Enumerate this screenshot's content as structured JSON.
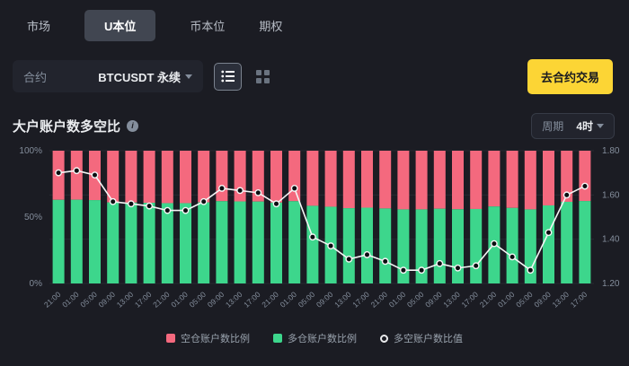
{
  "colors": {
    "background": "#1B1C23",
    "panel": "#22242D",
    "accent_yellow": "#FCD535",
    "short_red": "#F4697E",
    "long_green": "#3DD68C",
    "ratio_line": "#F5F5F5",
    "muted_text": "#848E9C"
  },
  "tabs": [
    {
      "label": "市场",
      "active": false
    },
    {
      "label": "U本位",
      "active": true
    },
    {
      "label": "币本位",
      "active": false
    },
    {
      "label": "期权",
      "active": false
    }
  ],
  "toolbar": {
    "contract_label": "合约",
    "contract_value": "BTCUSDT 永续",
    "trade_button": "去合约交易"
  },
  "section": {
    "title": "大户账户数多空比",
    "info_glyph": "i",
    "period_label": "周期",
    "period_value": "4时"
  },
  "legend": [
    {
      "label": "空仓账户数比例",
      "marker": "square",
      "color": "#F4697E"
    },
    {
      "label": "多仓账户数比例",
      "marker": "square",
      "color": "#3DD68C"
    },
    {
      "label": "多空账户数比值",
      "marker": "dot",
      "color": "#F5F5F5"
    }
  ],
  "chart_data": {
    "type": "bar",
    "subtype": "stacked-percent-bars-with-ratio-line",
    "title": "大户账户数多空比",
    "categories": [
      "21:00",
      "01:00",
      "05:00",
      "09:00",
      "13:00",
      "17:00",
      "21:00",
      "01:00",
      "05:00",
      "09:00",
      "13:00",
      "17:00",
      "21:00",
      "01:00",
      "05:00",
      "09:00",
      "13:00",
      "17:00",
      "21:00",
      "01:00",
      "05:00",
      "09:00",
      "13:00",
      "17:00",
      "21:00",
      "01:00",
      "05:00",
      "09:00",
      "13:00",
      "17:00"
    ],
    "series": [
      {
        "name": "空仓账户数比例",
        "type": "bar",
        "stack": "top",
        "color": "#F4697E",
        "values": [
          37.0,
          36.9,
          37.2,
          38.9,
          39.1,
          39.2,
          39.5,
          39.5,
          38.9,
          38.0,
          38.2,
          38.3,
          39.1,
          38.0,
          41.5,
          42.2,
          43.3,
          42.9,
          43.5,
          44.2,
          44.2,
          43.7,
          44.1,
          43.9,
          42.0,
          43.1,
          44.2,
          41.2,
          38.5,
          37.9
        ]
      },
      {
        "name": "多仓账户数比例",
        "type": "bar",
        "stack": "bottom",
        "color": "#3DD68C",
        "values": [
          63.0,
          63.1,
          62.8,
          61.1,
          60.9,
          60.8,
          60.5,
          60.5,
          61.1,
          62.0,
          61.8,
          61.7,
          60.9,
          62.0,
          58.5,
          57.8,
          56.7,
          57.1,
          56.5,
          55.8,
          55.8,
          56.3,
          55.9,
          56.1,
          58.0,
          56.9,
          55.8,
          58.8,
          61.5,
          62.1
        ]
      },
      {
        "name": "多空账户数比值",
        "type": "line",
        "color": "#F5F5F5",
        "values": [
          1.7,
          1.71,
          1.69,
          1.57,
          1.56,
          1.55,
          1.53,
          1.53,
          1.57,
          1.63,
          1.62,
          1.61,
          1.56,
          1.63,
          1.41,
          1.37,
          1.31,
          1.33,
          1.3,
          1.26,
          1.26,
          1.29,
          1.27,
          1.28,
          1.38,
          1.32,
          1.26,
          1.43,
          1.6,
          1.64
        ]
      }
    ],
    "left_axis": {
      "min": 0,
      "max": 100,
      "ticks": [
        "0%",
        "50%",
        "100%"
      ]
    },
    "right_axis": {
      "min": 1.2,
      "max": 1.8,
      "ticks": [
        "1.20",
        "1.40",
        "1.60",
        "1.80"
      ]
    },
    "grid": true,
    "legend_position": "bottom"
  }
}
